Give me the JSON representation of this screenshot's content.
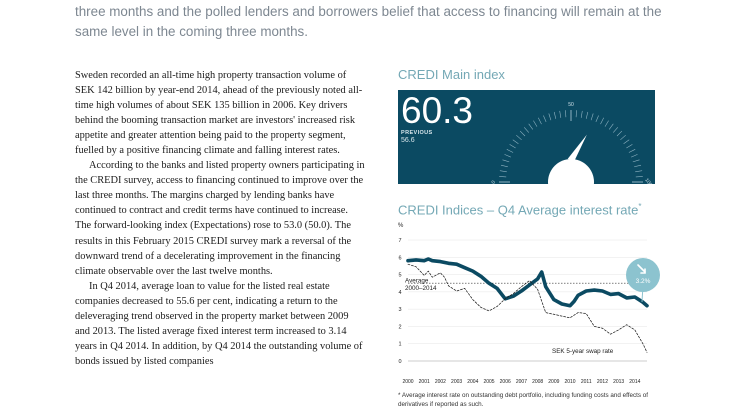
{
  "intro": {
    "line1": "three months and the polled lenders and borrowers belief that access to financing will remain at the",
    "line2": "same level in the coming three months."
  },
  "body": {
    "paragraphs": [
      "Sweden recorded an all-time high property transaction volume of SEK 142 billion by year-end 2014, ahead of the previously noted all-time high volumes of about SEK 135 billion in 2006. Key drivers behind the booming transaction market are investors' increased risk appetite and greater attention being paid to the property segment, fuelled by a positive financing climate and falling interest rates.",
      "According to the banks and listed property owners participating in the CREDI survey, access to financing continued to improve over the last three months. The margins charged by lending banks have continued to contract and credit terms have continued to increase. The forward-looking index (Expectations) rose to 53.0 (50.0). The results in this February 2015 CREDI survey mark a reversal of the downward trend of a decelerating improvement in the financing climate observable over the last twelve months.",
      "In Q4 2014, average loan to value for the listed real estate companies decreased to 55.6 per cent, indicating a return to the deleveraging trend observed in the property market between 2009 and 2013. The listed average fixed interest term increased to 3.14 years in Q4 2014. In addition, by Q4 2014 the outstanding volume of bonds issued by listed companies"
    ]
  },
  "main_index": {
    "title": "CREDI Main index",
    "value": "60.3",
    "previous_label": "PREVIOUS",
    "previous_value": "56.6",
    "gauge_ticks": [
      "0",
      "50",
      "100"
    ],
    "gauge_value": 60.3,
    "colors": {
      "panel": "#0b4a62",
      "needle": "#ffffff"
    }
  },
  "rate_chart": {
    "title": "CREDI Indices – Q4 Average interest rate",
    "title_marker": "*",
    "footnote": "* Average interest rate on outstanding debt portfolio, including funding costs and effects of derivatives if reported as such."
  },
  "chart_data": {
    "type": "line",
    "ylabel": "%",
    "ylim": [
      0,
      7
    ],
    "yticks": [
      "0",
      "1",
      "2",
      "3",
      "4",
      "5",
      "6",
      "7"
    ],
    "xlim": [
      2000,
      2014.75
    ],
    "xticks": [
      "2000",
      "2001",
      "2002",
      "2003",
      "2004",
      "2005",
      "2006",
      "2007",
      "2008",
      "2009",
      "2010",
      "2011",
      "2012",
      "2013",
      "2014"
    ],
    "average_line": {
      "label_line1": "Average",
      "label_line2": "2000–2014",
      "value": 4.5
    },
    "badge": {
      "label": "3.2%",
      "icon": "arrow-down-right-icon"
    },
    "series": [
      {
        "name": "",
        "style": "solid",
        "color": "#0b4a62",
        "x": [
          2000,
          2000.5,
          2001,
          2001.25,
          2001.5,
          2002,
          2002.5,
          2003,
          2003.5,
          2004,
          2004.5,
          2005,
          2005.5,
          2006,
          2006.5,
          2007,
          2007.5,
          2008,
          2008.25,
          2008.5,
          2009,
          2009.5,
          2010,
          2010.25,
          2010.5,
          2011,
          2011.5,
          2012,
          2012.5,
          2013,
          2013.5,
          2014,
          2014.5,
          2014.75
        ],
        "y": [
          5.8,
          5.85,
          5.8,
          5.9,
          5.8,
          5.75,
          5.65,
          5.6,
          5.4,
          5.2,
          4.9,
          4.5,
          4.2,
          3.6,
          3.75,
          4.05,
          4.4,
          4.75,
          5.15,
          4.3,
          3.55,
          3.3,
          3.2,
          3.45,
          3.8,
          4.05,
          4.1,
          4.05,
          3.85,
          3.9,
          3.65,
          3.7,
          3.4,
          3.2
        ]
      },
      {
        "name": "SEK 5-year swap rate",
        "style": "dashed",
        "color": "#1e1e1e",
        "x": [
          2000,
          2000.5,
          2001,
          2001.25,
          2001.5,
          2002,
          2002.25,
          2002.5,
          2003,
          2003.5,
          2004,
          2004.5,
          2005,
          2005.5,
          2006,
          2006.5,
          2007,
          2007.5,
          2008,
          2008.5,
          2009,
          2009.5,
          2010,
          2010.5,
          2011,
          2011.5,
          2012,
          2012.5,
          2013,
          2013.5,
          2014,
          2014.5,
          2014.75
        ],
        "y": [
          5.6,
          5.45,
          4.95,
          5.2,
          4.85,
          5.1,
          4.85,
          4.35,
          4.05,
          4.2,
          3.55,
          3.1,
          2.9,
          3.15,
          3.6,
          3.9,
          4.3,
          4.65,
          4.15,
          2.8,
          2.7,
          2.6,
          2.5,
          2.8,
          2.75,
          2.0,
          1.9,
          1.55,
          1.8,
          2.1,
          1.8,
          1.0,
          0.5
        ]
      }
    ]
  }
}
